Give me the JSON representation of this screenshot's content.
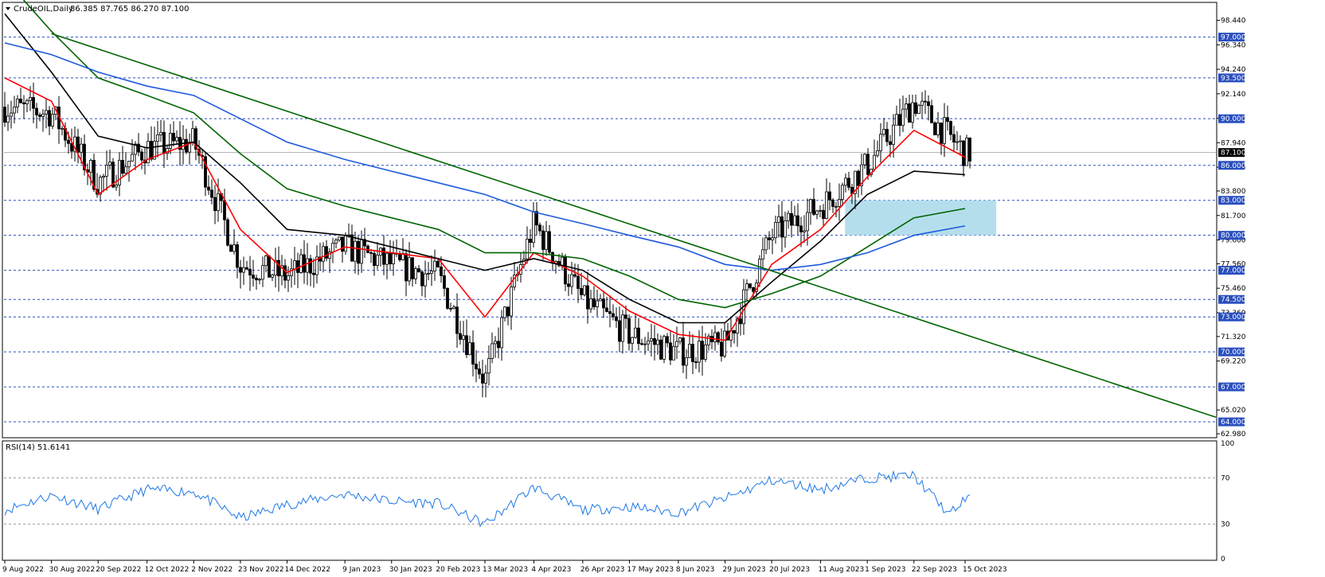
{
  "header": {
    "symbol": "CrudeOIL,Daily",
    "ohlc": "86.385 87.765 86.270 87.100"
  },
  "rsi_header": "RSI(14) 51.6141",
  "chart_data": [
    {
      "type": "candlestick",
      "title": "CrudeOIL,Daily",
      "y_ticks": [
        "98.440",
        "96.340",
        "94.240",
        "92.140",
        "90.040",
        "87.940",
        "85.840",
        "83.800",
        "81.700",
        "79.600",
        "77.560",
        "75.460",
        "73.360",
        "71.320",
        "69.220",
        "65.020",
        "62.980"
      ],
      "ylim": [
        62.98,
        99.5
      ],
      "levels": [
        {
          "label": "97.000",
          "value": 97.0
        },
        {
          "label": "93.500",
          "value": 93.5
        },
        {
          "label": "90.000",
          "value": 90.0
        },
        {
          "label": "86.000",
          "value": 86.0
        },
        {
          "label": "83.000",
          "value": 83.0
        },
        {
          "label": "80.000",
          "value": 80.0
        },
        {
          "label": "77.000",
          "value": 77.0
        },
        {
          "label": "74.500",
          "value": 74.5
        },
        {
          "label": "73.000",
          "value": 73.0
        },
        {
          "label": "70.000",
          "value": 70.0
        },
        {
          "label": "67.000",
          "value": 67.0
        },
        {
          "label": "64.000",
          "value": 64.0
        }
      ],
      "current_price": {
        "label": "87.100",
        "value": 87.1
      },
      "x_dates": [
        "9 Aug 2022",
        "30 Aug 2022",
        "20 Sep 2022",
        "12 Oct 2022",
        "2 Nov 2022",
        "23 Nov 2022",
        "14 Dec 2022",
        "9 Jan 2023",
        "30 Jan 2023",
        "20 Feb 2023",
        "13 Mar 2023",
        "4 Apr 2023",
        "26 Apr 2023",
        "17 May 2023",
        "8 Jun 2023",
        "29 Jun 2023",
        "20 Jul 2023",
        "11 Aug 2023",
        "1 Sep 2023",
        "22 Sep 2023",
        "15 Oct 2023"
      ],
      "close_path": [
        [
          "9 Aug 2022",
          91.0
        ],
        [
          "30 Aug 2022",
          90.5
        ],
        [
          "20 Sep 2022",
          84.5
        ],
        [
          "12 Oct 2022",
          87.5
        ],
        [
          "2 Nov 2022",
          88.0
        ],
        [
          "23 Nov 2022",
          77.5
        ],
        [
          "14 Dec 2022",
          76.5
        ],
        [
          "9 Jan 2023",
          79.0
        ],
        [
          "30 Jan 2023",
          77.5
        ],
        [
          "20 Feb 2023",
          76.5
        ],
        [
          "13 Mar 2023",
          67.5
        ],
        [
          "4 Apr 2023",
          81.0
        ],
        [
          "26 Apr 2023",
          74.5
        ],
        [
          "17 May 2023",
          71.5
        ],
        [
          "8 Jun 2023",
          70.0
        ],
        [
          "29 Jun 2023",
          70.5
        ],
        [
          "20 Jul 2023",
          80.0
        ],
        [
          "11 Aug 2023",
          82.5
        ],
        [
          "1 Sep 2023",
          86.0
        ],
        [
          "22 Sep 2023",
          91.5
        ],
        [
          "15 Oct 2023",
          87.1
        ]
      ],
      "moving_averages": [
        {
          "color": "#ff0000",
          "path": [
            [
              "9 Aug 2022",
              93.5
            ],
            [
              "30 Aug 2022",
              91.5
            ],
            [
              "20 Sep 2022",
              83.5
            ],
            [
              "12 Oct 2022",
              86.5
            ],
            [
              "2 Nov 2022",
              88.0
            ],
            [
              "23 Nov 2022",
              80.5
            ],
            [
              "14 Dec 2022",
              76.8
            ],
            [
              "9 Jan 2023",
              79.0
            ],
            [
              "30 Jan 2023",
              78.5
            ],
            [
              "20 Feb 2023",
              78.0
            ],
            [
              "13 Mar 2023",
              73.0
            ],
            [
              "4 Apr 2023",
              78.5
            ],
            [
              "26 Apr 2023",
              76.5
            ],
            [
              "17 May 2023",
              73.5
            ],
            [
              "8 Jun 2023",
              71.5
            ],
            [
              "29 Jun 2023",
              71.0
            ],
            [
              "20 Jul 2023",
              77.5
            ],
            [
              "11 Aug 2023",
              80.5
            ],
            [
              "1 Sep 2023",
              85.0
            ],
            [
              "22 Sep 2023",
              89.0
            ],
            [
              "15 Oct 2023",
              86.7
            ]
          ]
        },
        {
          "color": "#000000",
          "path": [
            [
              "9 Aug 2022",
              99.0
            ],
            [
              "30 Aug 2022",
              94.0
            ],
            [
              "20 Sep 2022",
              88.5
            ],
            [
              "12 Oct 2022",
              87.5
            ],
            [
              "2 Nov 2022",
              88.0
            ],
            [
              "23 Nov 2022",
              84.5
            ],
            [
              "14 Dec 2022",
              80.5
            ],
            [
              "9 Jan 2023",
              80.0
            ],
            [
              "30 Jan 2023",
              79.0
            ],
            [
              "20 Feb 2023",
              78.0
            ],
            [
              "13 Mar 2023",
              77.0
            ],
            [
              "4 Apr 2023",
              78.0
            ],
            [
              "26 Apr 2023",
              77.0
            ],
            [
              "17 May 2023",
              74.5
            ],
            [
              "8 Jun 2023",
              72.5
            ],
            [
              "29 Jun 2023",
              72.5
            ],
            [
              "20 Jul 2023",
              76.0
            ],
            [
              "11 Aug 2023",
              79.5
            ],
            [
              "1 Sep 2023",
              83.5
            ],
            [
              "22 Sep 2023",
              85.5
            ],
            [
              "15 Oct 2023",
              85.2
            ]
          ]
        },
        {
          "color": "#006400",
          "path": [
            [
              "9 Aug 2022",
              102.0
            ],
            [
              "30 Aug 2022",
              97.5
            ],
            [
              "20 Sep 2022",
              93.5
            ],
            [
              "12 Oct 2022",
              92.0
            ],
            [
              "2 Nov 2022",
              90.5
            ],
            [
              "23 Nov 2022",
              87.0
            ],
            [
              "14 Dec 2022",
              84.0
            ],
            [
              "9 Jan 2023",
              82.5
            ],
            [
              "30 Jan 2023",
              81.5
            ],
            [
              "20 Feb 2023",
              80.5
            ],
            [
              "13 Mar 2023",
              78.5
            ],
            [
              "4 Apr 2023",
              78.5
            ],
            [
              "26 Apr 2023",
              78.0
            ],
            [
              "17 May 2023",
              76.5
            ],
            [
              "8 Jun 2023",
              74.5
            ],
            [
              "29 Jun 2023",
              73.8
            ],
            [
              "20 Jul 2023",
              75.0
            ],
            [
              "11 Aug 2023",
              76.5
            ],
            [
              "1 Sep 2023",
              79.0
            ],
            [
              "22 Sep 2023",
              81.5
            ],
            [
              "15 Oct 2023",
              82.3
            ]
          ]
        },
        {
          "color": "#1e5adc",
          "path": [
            [
              "9 Aug 2022",
              96.5
            ],
            [
              "30 Aug 2022",
              95.5
            ],
            [
              "20 Sep 2022",
              94.0
            ],
            [
              "12 Oct 2022",
              92.8
            ],
            [
              "2 Nov 2022",
              92.0
            ],
            [
              "23 Nov 2022",
              90.0
            ],
            [
              "14 Dec 2022",
              88.0
            ],
            [
              "9 Jan 2023",
              86.5
            ],
            [
              "30 Jan 2023",
              85.5
            ],
            [
              "20 Feb 2023",
              84.5
            ],
            [
              "13 Mar 2023",
              83.5
            ],
            [
              "4 Apr 2023",
              82.0
            ],
            [
              "26 Apr 2023",
              81.0
            ],
            [
              "17 May 2023",
              80.0
            ],
            [
              "8 Jun 2023",
              79.0
            ],
            [
              "29 Jun 2023",
              77.5
            ],
            [
              "20 Jul 2023",
              77.0
            ],
            [
              "11 Aug 2023",
              77.5
            ],
            [
              "1 Sep 2023",
              78.5
            ],
            [
              "22 Sep 2023",
              80.0
            ],
            [
              "15 Oct 2023",
              80.8
            ]
          ]
        }
      ],
      "trendline": {
        "color": "#006400",
        "from": [
          "30 Aug 2022",
          97.3
        ],
        "to_value_at_right_edge": 64.4
      },
      "zone": {
        "color": "#a8d8ea",
        "from_date": "22 Aug 2023",
        "to_date": "29 Oct 2023",
        "low": 80.0,
        "high": 83.0
      }
    },
    {
      "type": "line",
      "title": "RSI(14) 51.6141",
      "y_ticks": [
        "100",
        "70",
        "30",
        "0"
      ],
      "ylim": [
        0,
        100
      ],
      "levels": [
        70,
        30
      ],
      "series": [
        {
          "color": "#1e78e6",
          "values": [
            [
              "9 Aug 2022",
              42
            ],
            [
              "30 Aug 2022",
              55
            ],
            [
              "20 Sep 2022",
              43
            ],
            [
              "12 Oct 2022",
              60
            ],
            [
              "2 Nov 2022",
              58
            ],
            [
              "23 Nov 2022",
              35
            ],
            [
              "14 Dec 2022",
              47
            ],
            [
              "9 Jan 2023",
              56
            ],
            [
              "30 Jan 2023",
              50
            ],
            [
              "20 Feb 2023",
              48
            ],
            [
              "13 Mar 2023",
              30
            ],
            [
              "4 Apr 2023",
              62
            ],
            [
              "26 Apr 2023",
              42
            ],
            [
              "17 May 2023",
              45
            ],
            [
              "8 Jun 2023",
              40
            ],
            [
              "29 Jun 2023",
              52
            ],
            [
              "20 Jul 2023",
              68
            ],
            [
              "11 Aug 2023",
              60
            ],
            [
              "1 Sep 2023",
              70
            ],
            [
              "22 Sep 2023",
              72
            ],
            [
              "8 Oct 2023",
              38
            ],
            [
              "15 Oct 2023",
              51.6
            ]
          ]
        }
      ]
    }
  ]
}
